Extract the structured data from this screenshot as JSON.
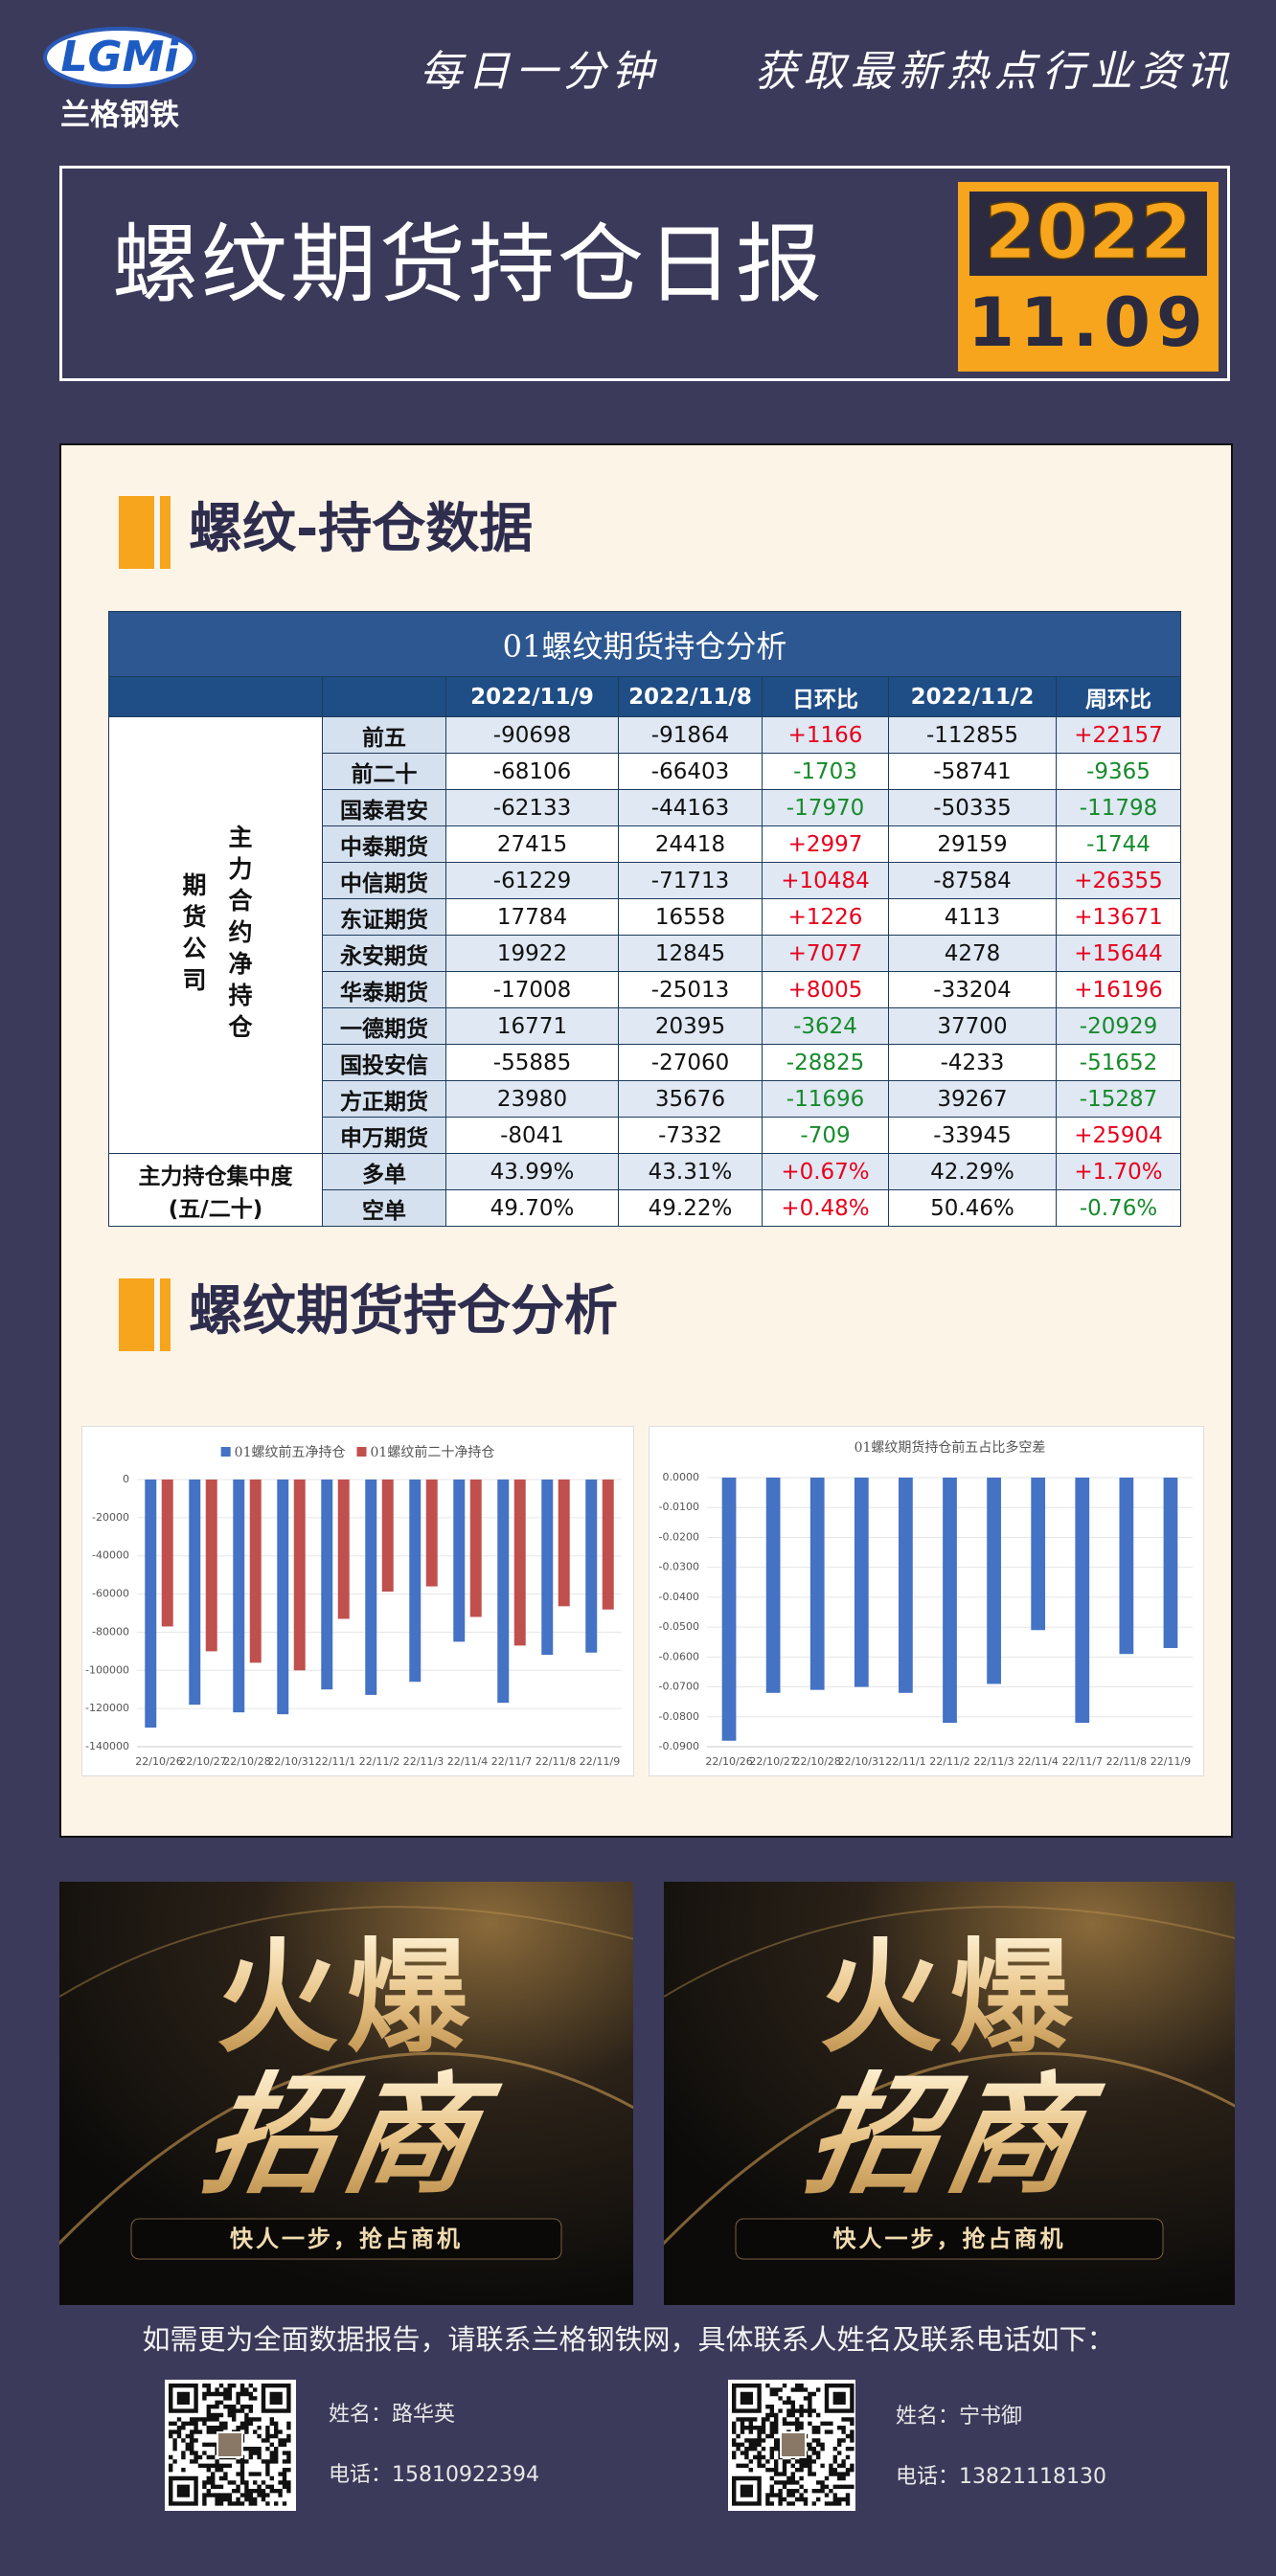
{
  "header": {
    "logo": "LGMi",
    "logo_cn": "兰格钢铁",
    "slogan": [
      "每日一分钟",
      "获取最新热点行业资讯"
    ]
  },
  "report": {
    "title": "螺纹期货持仓日报",
    "year": "2022",
    "date": "11.09"
  },
  "section1": {
    "title": "螺纹-持仓数据"
  },
  "table": {
    "title": "01螺纹期货持仓分析",
    "columns": [
      "2022/11/9",
      "2022/11/8",
      "日环比",
      "2022/11/2",
      "周环比"
    ],
    "change_colors": {
      "up": "#e8001c",
      "down": "#178a2c"
    },
    "groups": [
      {
        "label": "主力合约净持仓",
        "sublabel": "期货公司",
        "rows": [
          {
            "label": "前五",
            "values": [
              "-90698",
              "-91864",
              "+1166",
              "-112855",
              "+22157"
            ]
          },
          {
            "label": "前二十",
            "values": [
              "-68106",
              "-66403",
              "-1703",
              "-58741",
              "-9365"
            ]
          },
          {
            "label": "国泰君安",
            "values": [
              "-62133",
              "-44163",
              "-17970",
              "-50335",
              "-11798"
            ]
          },
          {
            "label": "中泰期货",
            "values": [
              "27415",
              "24418",
              "+2997",
              "29159",
              "-1744"
            ]
          },
          {
            "label": "中信期货",
            "values": [
              "-61229",
              "-71713",
              "+10484",
              "-87584",
              "+26355"
            ]
          },
          {
            "label": "东证期货",
            "values": [
              "17784",
              "16558",
              "+1226",
              "4113",
              "+13671"
            ]
          },
          {
            "label": "永安期货",
            "values": [
              "19922",
              "12845",
              "+7077",
              "4278",
              "+15644"
            ]
          },
          {
            "label": "华泰期货",
            "values": [
              "-17008",
              "-25013",
              "+8005",
              "-33204",
              "+16196"
            ]
          },
          {
            "label": "一德期货",
            "values": [
              "16771",
              "20395",
              "-3624",
              "37700",
              "-20929"
            ]
          },
          {
            "label": "国投安信",
            "values": [
              "-55885",
              "-27060",
              "-28825",
              "-4233",
              "-51652"
            ]
          },
          {
            "label": "方正期货",
            "values": [
              "23980",
              "35676",
              "-11696",
              "39267",
              "-15287"
            ]
          },
          {
            "label": "申万期货",
            "values": [
              "-8041",
              "-7332",
              "-709",
              "-33945",
              "+25904"
            ]
          }
        ]
      },
      {
        "label": "主力持仓集中度",
        "sublabel": "(五/二十)",
        "rows": [
          {
            "label": "多单",
            "values": [
              "43.99%",
              "43.31%",
              "+0.67%",
              "42.29%",
              "+1.70%"
            ]
          },
          {
            "label": "空单",
            "values": [
              "49.70%",
              "49.22%",
              "+0.48%",
              "50.46%",
              "-0.76%"
            ]
          }
        ]
      }
    ]
  },
  "section2": {
    "title": "螺纹期货持仓分析"
  },
  "chart_data": [
    {
      "type": "bar",
      "categories": [
        "22/10/26",
        "22/10/27",
        "22/10/28",
        "22/10/31",
        "22/11/1",
        "22/11/2",
        "22/11/3",
        "22/11/4",
        "22/11/7",
        "22/11/8",
        "22/11/9"
      ],
      "series": [
        {
          "name": "01螺纹前五净持仓",
          "color": "#4472c4",
          "values": [
            -130000,
            -118000,
            -122000,
            -123000,
            -110000,
            -112855,
            -106000,
            -85000,
            -117000,
            -91864,
            -90698
          ]
        },
        {
          "name": "01螺纹前二十净持仓",
          "color": "#c0504d",
          "values": [
            -77000,
            -90000,
            -96000,
            -100000,
            -73000,
            -58741,
            -56000,
            -72000,
            -87000,
            -66403,
            -68106
          ]
        }
      ],
      "ylim": [
        -140000,
        0
      ],
      "yticks": [
        0,
        -20000,
        -40000,
        -60000,
        -80000,
        -100000,
        -120000,
        -140000
      ],
      "grid": true,
      "legend": "top"
    },
    {
      "type": "bar",
      "title": "01螺纹期货持仓前五占比多空差",
      "categories": [
        "22/10/26",
        "22/10/27",
        "22/10/28",
        "22/10/31",
        "22/11/1",
        "22/11/2",
        "22/11/3",
        "22/11/4",
        "22/11/7",
        "22/11/8",
        "22/11/9"
      ],
      "color": "#4472c4",
      "values": [
        -0.088,
        -0.072,
        -0.071,
        -0.07,
        -0.072,
        -0.082,
        -0.069,
        -0.051,
        -0.082,
        -0.059,
        -0.057
      ],
      "ylim": [
        -0.09,
        0
      ],
      "yticks": [
        {
          "value": 0,
          "label": "0.0000"
        },
        {
          "value": -0.01,
          "label": "-0.0100"
        },
        {
          "value": -0.02,
          "label": "-0.0200"
        },
        {
          "value": -0.03,
          "label": "-0.0300"
        },
        {
          "value": -0.04,
          "label": "-0.0400"
        },
        {
          "value": -0.05,
          "label": "-0.0500"
        },
        {
          "value": -0.06,
          "label": "-0.0600"
        },
        {
          "value": -0.07,
          "label": "-0.0700"
        },
        {
          "value": -0.08,
          "label": "-0.0800"
        },
        {
          "value": -0.09,
          "label": "-0.0900"
        }
      ],
      "grid": true
    }
  ],
  "ads": [
    {
      "headline": "火爆",
      "subhead": "招商",
      "tagline": "快人一步，抢占商机"
    },
    {
      "headline": "火爆",
      "subhead": "招商",
      "tagline": "快人一步，抢占商机"
    }
  ],
  "footer": {
    "note": "如需更为全面数据报告，请联系兰格钢铁网，具体联系人姓名及联系电话如下：",
    "contacts": [
      {
        "name": "姓名：路华英",
        "phone": "电话：15810922394"
      },
      {
        "name": "姓名：宁书御",
        "phone": "电话：13821118130"
      }
    ]
  }
}
